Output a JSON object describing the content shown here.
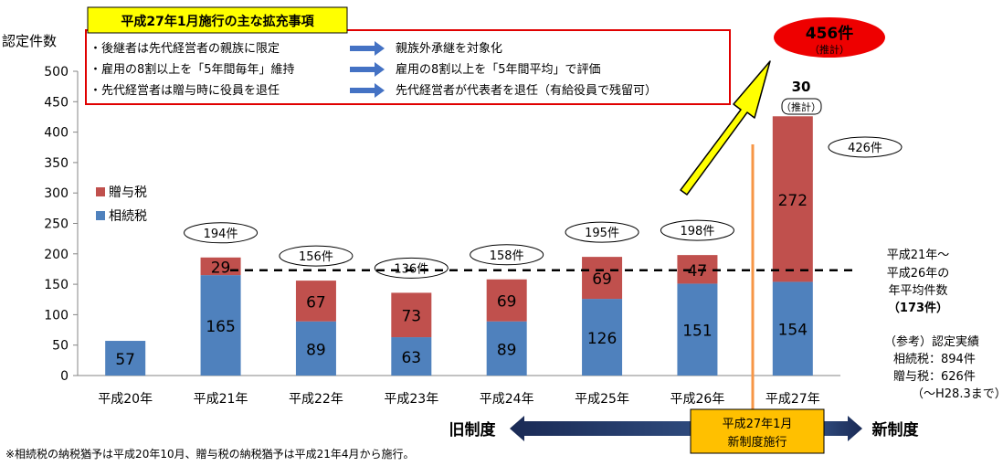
{
  "chart_data": {
    "type": "bar",
    "stacked": true,
    "ylabel": "認定件数",
    "ylim": [
      0,
      500
    ],
    "yticks": [
      "0",
      "50",
      "100",
      "150",
      "200",
      "250",
      "300",
      "350",
      "400",
      "450",
      "500"
    ],
    "categories": [
      "平成20年",
      "平成21年",
      "平成22年",
      "平成23年",
      "平成24年",
      "平成25年",
      "平成26年",
      "平成27年"
    ],
    "series": [
      {
        "name": "相続税",
        "values": [
          57,
          165,
          89,
          63,
          89,
          126,
          151,
          154
        ],
        "color": "#4f81bd"
      },
      {
        "name": "贈与税",
        "values": [
          0,
          29,
          67,
          73,
          69,
          69,
          47,
          272
        ],
        "color": "#c0504d"
      }
    ],
    "value_labels": {
      "相続税": [
        "57",
        "165",
        "89",
        "63",
        "89",
        "126",
        "151",
        "154"
      ],
      "贈与税": [
        "",
        "29",
        "67",
        "73",
        "69",
        "69",
        "47",
        "272"
      ]
    },
    "totals": [
      "",
      "194件",
      "156件",
      "136件",
      "158件",
      "195件",
      "198件",
      "426件"
    ],
    "average_line": {
      "value": 173
    },
    "legend_position": "left-middle",
    "grid": false
  },
  "reform_box": {
    "title": "平成27年1月施行の主な拡充事項",
    "rows": [
      {
        "before": "・後継者は先代経営者の親族に限定",
        "after": "親族外承継を対象化"
      },
      {
        "before": "・雇用の8割以上を「5年間毎年」維持",
        "after": "雇用の8割以上を「5年間平均」で評価"
      },
      {
        "before": "・先代経営者は贈与時に役員を退任",
        "after": "先代経営者が代表者を退任（有給役員で残留可）"
      }
    ]
  },
  "projection": {
    "total": "456件",
    "total_note": "（推計）",
    "extra": "30",
    "extra_note": "（推計）"
  },
  "average_note": {
    "line1": "平成21年～",
    "line2": "平成26年の",
    "line3": "年平均件数",
    "line4": "（173件）"
  },
  "reference_note": {
    "line1": "（参考）認定実績",
    "line2": "相続税：894件",
    "line3": "贈与税：626件",
    "line4": "（～H28.3まで）"
  },
  "timeline": {
    "old": "旧制度",
    "new": "新制度",
    "center_line1": "平成27年1月",
    "center_line2": "新制度施行"
  },
  "footnote": "※相続税の納税猶予は平成20年10月、贈与税の納税猶予は平成21年4月から施行。"
}
